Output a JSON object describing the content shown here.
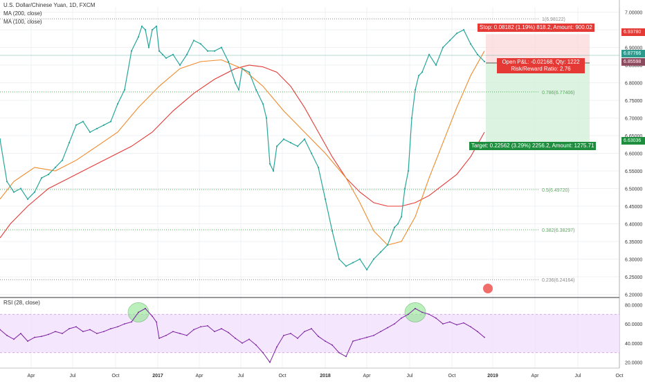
{
  "legend": {
    "title": "U.S. Dollar/Chinese Yuan, 1D, FXCM",
    "ma200": "MA (200, close)",
    "ma100": "MA (100, close)",
    "rsi": "RSI (28, close)"
  },
  "chart_data": [
    {
      "type": "line",
      "subtype": "candlestick",
      "title": "U.S. Dollar/Chinese Yuan, 1D, FXCM",
      "ylim": [
        6.195,
        7.015
      ],
      "y_ticks": [
        "7.00000",
        "6.95000",
        "6.90000",
        "6.85000",
        "6.80000",
        "6.75000",
        "6.70000",
        "6.65000",
        "6.60000",
        "6.55000",
        "6.50000",
        "6.45000",
        "6.40000",
        "6.35000",
        "6.30000",
        "6.25000",
        "6.20000"
      ],
      "x_ticks": [
        "Apr",
        "Jul",
        "Oct",
        "2017",
        "Apr",
        "Jul",
        "Oct",
        "2018",
        "Apr",
        "Jul",
        "Oct",
        "2019",
        "Apr",
        "Jul",
        "Oct"
      ],
      "series": [
        {
          "name": "MA (200, close)",
          "color": "#e53935",
          "x": [
            0,
            15,
            40,
            70,
            100,
            130,
            160,
            190,
            220,
            250,
            280,
            310,
            340,
            360,
            380,
            400,
            420,
            440,
            460,
            480,
            500,
            520,
            540,
            560,
            580,
            600,
            620,
            640,
            660,
            680,
            700
          ],
          "y": [
            6.36,
            6.4,
            6.45,
            6.5,
            6.53,
            6.56,
            6.59,
            6.62,
            6.66,
            6.72,
            6.77,
            6.81,
            6.84,
            6.85,
            6.845,
            6.83,
            6.79,
            6.73,
            6.66,
            6.59,
            6.53,
            6.49,
            6.46,
            6.45,
            6.45,
            6.46,
            6.48,
            6.51,
            6.54,
            6.59,
            6.66
          ]
        },
        {
          "name": "MA (100, close)",
          "color": "#ef8a2a",
          "x": [
            0,
            20,
            50,
            80,
            110,
            140,
            170,
            200,
            230,
            260,
            290,
            320,
            350,
            380,
            410,
            440,
            470,
            500,
            520,
            540,
            560,
            580,
            600,
            620,
            640,
            660,
            680,
            700
          ],
          "y": [
            6.47,
            6.52,
            6.56,
            6.55,
            6.58,
            6.62,
            6.66,
            6.73,
            6.79,
            6.84,
            6.86,
            6.865,
            6.84,
            6.79,
            6.72,
            6.66,
            6.6,
            6.53,
            6.46,
            6.38,
            6.34,
            6.35,
            6.42,
            6.53,
            6.63,
            6.73,
            6.82,
            6.89
          ]
        },
        {
          "name": "Price",
          "color": "#26a69a",
          "x": [
            0,
            10,
            20,
            30,
            40,
            50,
            60,
            70,
            80,
            90,
            100,
            110,
            120,
            130,
            140,
            150,
            160,
            170,
            180,
            190,
            200,
            205,
            210,
            215,
            220,
            226,
            230,
            235,
            240,
            250,
            260,
            270,
            280,
            290,
            300,
            310,
            320,
            330,
            340,
            345,
            350,
            360,
            370,
            380,
            385,
            390,
            395,
            400,
            410,
            420,
            430,
            440,
            450,
            460,
            470,
            480,
            490,
            500,
            510,
            520,
            530,
            540,
            550,
            560,
            570,
            575,
            580,
            585,
            590,
            595,
            600,
            605,
            610,
            620,
            630,
            640,
            650,
            660,
            670,
            680,
            690,
            700
          ],
          "y": [
            6.64,
            6.52,
            6.49,
            6.5,
            6.47,
            6.49,
            6.53,
            6.54,
            6.56,
            6.58,
            6.63,
            6.68,
            6.69,
            6.66,
            6.67,
            6.68,
            6.69,
            6.74,
            6.78,
            6.89,
            6.93,
            6.96,
            6.95,
            6.9,
            6.95,
            6.96,
            6.89,
            6.88,
            6.87,
            6.88,
            6.85,
            6.88,
            6.92,
            6.91,
            6.89,
            6.89,
            6.9,
            6.86,
            6.8,
            6.78,
            6.84,
            6.83,
            6.78,
            6.74,
            6.7,
            6.57,
            6.55,
            6.62,
            6.64,
            6.63,
            6.62,
            6.64,
            6.6,
            6.56,
            6.47,
            6.38,
            6.3,
            6.28,
            6.29,
            6.3,
            6.27,
            6.3,
            6.32,
            6.34,
            6.39,
            6.4,
            6.42,
            6.5,
            6.55,
            6.7,
            6.78,
            6.82,
            6.83,
            6.88,
            6.85,
            6.9,
            6.92,
            6.94,
            6.95,
            6.91,
            6.88,
            6.86
          ]
        }
      ],
      "annotations": [
        {
          "label": "1(6.98122)",
          "value": 6.98122
        },
        {
          "label": "0.786(6.77406)",
          "value": 6.77406
        },
        {
          "label": "0.5(6.49720)",
          "value": 6.4972
        },
        {
          "label": "0.382(6.38297)",
          "value": 6.38297
        },
        {
          "label": "0.236(6.24164)",
          "value": 6.24164
        }
      ],
      "price_labels": [
        {
          "text": "6.93780",
          "value": 6.9378,
          "color": "#e53935"
        },
        {
          "text": "6.87766",
          "value": 6.87766,
          "color": "#2e9a8e"
        },
        {
          "text": "6.85598",
          "value": 6.85598,
          "color": "#8b4a5e"
        },
        {
          "text": "6.63036",
          "value": 6.63036,
          "color": "#1e8e3e"
        }
      ],
      "position": {
        "stop": "Stop: 0.08182 (1.19%) 818.2, Amount: 900.02",
        "open_pl": "Open P&L: -0.02168, Qty: 1222",
        "risk_reward": "Risk/Reward Ratio: 2.76",
        "target": "Target: 0.22562 (3.29%) 2256.2, Amount: 1275.71",
        "stop_price": 6.9378,
        "entry_price": 6.85598,
        "target_price": 6.63036
      },
      "grid": true
    },
    {
      "type": "line",
      "title": "RSI (28, close)",
      "ylim": [
        14,
        86
      ],
      "y_ticks": [
        "80.0000",
        "60.0000",
        "40.0000",
        "20.0000"
      ],
      "band": [
        30,
        70
      ],
      "series": [
        {
          "name": "RSI (28, close)",
          "color": "#7b1fa2",
          "x": [
            0,
            10,
            20,
            30,
            40,
            50,
            60,
            70,
            80,
            90,
            100,
            110,
            120,
            130,
            140,
            150,
            160,
            170,
            180,
            190,
            200,
            210,
            220,
            226,
            230,
            240,
            250,
            260,
            270,
            280,
            290,
            300,
            310,
            320,
            330,
            340,
            350,
            360,
            370,
            380,
            390,
            400,
            410,
            420,
            430,
            440,
            450,
            460,
            470,
            480,
            490,
            500,
            510,
            520,
            530,
            540,
            550,
            560,
            570,
            580,
            590,
            600,
            610,
            620,
            630,
            640,
            650,
            660,
            670,
            680,
            690,
            700
          ],
          "y": [
            54,
            48,
            44,
            50,
            42,
            46,
            47,
            49,
            52,
            50,
            55,
            57,
            52,
            54,
            50,
            52,
            55,
            57,
            60,
            62,
            72,
            76,
            68,
            62,
            45,
            48,
            52,
            50,
            48,
            54,
            57,
            58,
            52,
            55,
            51,
            45,
            40,
            44,
            38,
            30,
            20,
            36,
            48,
            50,
            45,
            52,
            55,
            47,
            42,
            38,
            30,
            26,
            42,
            44,
            46,
            48,
            52,
            56,
            60,
            66,
            70,
            76,
            72,
            70,
            66,
            60,
            62,
            59,
            61,
            57,
            52,
            46
          ]
        }
      ],
      "circles": [
        {
          "x": 200,
          "y": 72
        },
        {
          "x": 600,
          "y": 72
        }
      ],
      "grid": true
    }
  ]
}
